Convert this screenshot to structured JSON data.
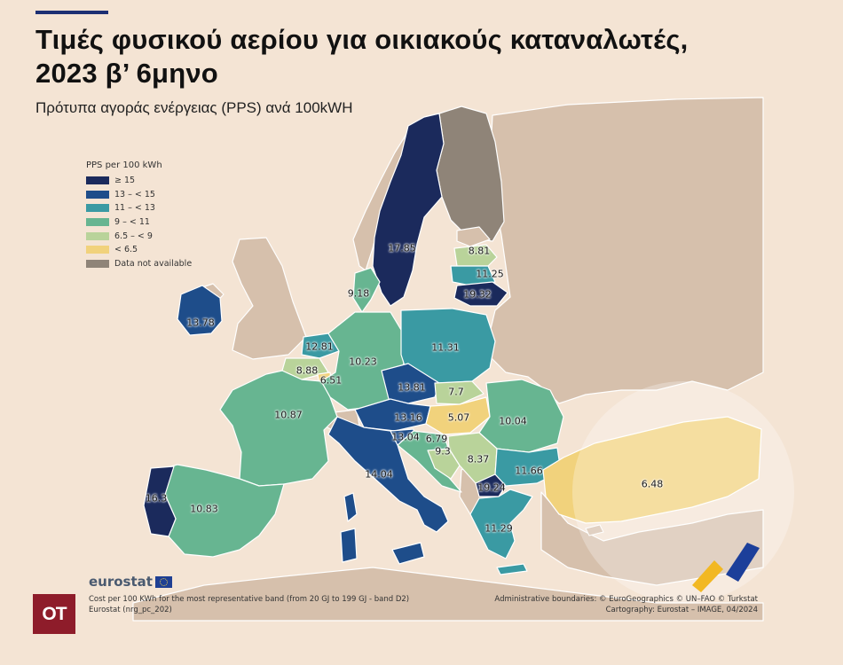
{
  "header": {
    "title_line1": "Τιμές φυσικού αερίου για οικιακούς καταναλωτές,",
    "title_line2": "2023 β’ 6μηνο",
    "subtitle": "Πρότυπα αγοράς ενέργειας (PPS) ανά 100kWH"
  },
  "legend": {
    "title": "PPS per 100 kWh",
    "items": [
      {
        "label": "≥ 15",
        "color": "#1b2a5c"
      },
      {
        "label": "13 – < 15",
        "color": "#1e4d8a"
      },
      {
        "label": "11 – < 13",
        "color": "#3a9aa3"
      },
      {
        "label": "9 – < 11",
        "color": "#67b591"
      },
      {
        "label": "6.5 – < 9",
        "color": "#b9d39a"
      },
      {
        "label": "< 6.5",
        "color": "#f1d27c"
      },
      {
        "label": "Data not available",
        "color": "#8f8478"
      }
    ]
  },
  "map": {
    "colors": {
      "sea": "#f4e4d4",
      "non_eu_land": "#d6c0ac",
      "border": "#ffffff"
    },
    "values": [
      {
        "id": "sweden",
        "text": "17.85"
      },
      {
        "id": "latvia",
        "text": "8.81"
      },
      {
        "id": "lithuania-top",
        "text": "11.25"
      },
      {
        "id": "lithuania",
        "text": "19.32"
      },
      {
        "id": "denmark",
        "text": "9.18"
      },
      {
        "id": "ireland",
        "text": "13.78"
      },
      {
        "id": "netherlands",
        "text": "12.81"
      },
      {
        "id": "poland",
        "text": "11.31"
      },
      {
        "id": "germany",
        "text": "10.23"
      },
      {
        "id": "belgium",
        "text": "8.88"
      },
      {
        "id": "luxembourg",
        "text": "6.51"
      },
      {
        "id": "czechia",
        "text": "13.81"
      },
      {
        "id": "slovakia",
        "text": "7.7"
      },
      {
        "id": "france",
        "text": "10.87"
      },
      {
        "id": "austria",
        "text": "13.16"
      },
      {
        "id": "hungary",
        "text": "5.07"
      },
      {
        "id": "romania",
        "text": "10.04"
      },
      {
        "id": "slovenia",
        "text": "13.04"
      },
      {
        "id": "croatia",
        "text": "6.79"
      },
      {
        "id": "bosnia",
        "text": "9.3"
      },
      {
        "id": "serbia",
        "text": "8.37"
      },
      {
        "id": "italy",
        "text": "14.04"
      },
      {
        "id": "bulgaria",
        "text": "11.66"
      },
      {
        "id": "north-macedonia",
        "text": "19.24"
      },
      {
        "id": "portugal",
        "text": "16.3"
      },
      {
        "id": "spain",
        "text": "10.83"
      },
      {
        "id": "turkey",
        "text": "6.48"
      },
      {
        "id": "greece",
        "text": "11.29"
      }
    ]
  },
  "footer": {
    "eurostat_word": "eurostat",
    "note_line1": "Cost per 100 KWh for the most representative band (from 20 GJ to 199 GJ - band D2)",
    "note_line2": "Eurostat (nrg_pc_202)",
    "credit_line1": "Administrative boundaries: © EuroGeographics © UN–FAO © Turkstat",
    "credit_line2": "Cartography: Eurostat – IMAGE, 04/2024",
    "logo_text": "OT"
  }
}
